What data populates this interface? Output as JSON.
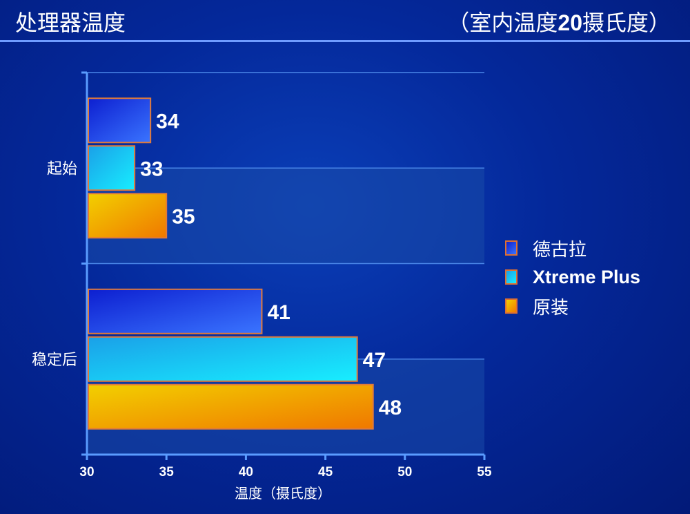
{
  "header": {
    "title": "处理器温度",
    "subtitle_prefix": "（室内温度",
    "subtitle_number": "20",
    "subtitle_suffix": "摄氏度）"
  },
  "chart_data": {
    "type": "bar",
    "orientation": "horizontal",
    "categories": [
      "起始",
      "稳定后"
    ],
    "series": [
      {
        "name": "德古拉",
        "values": [
          34,
          41
        ],
        "color": "#1a3cf0"
      },
      {
        "name": "Xtreme Plus",
        "values": [
          33,
          47
        ],
        "color": "#18b8f0"
      },
      {
        "name": "原装",
        "values": [
          35,
          48
        ],
        "color": "#f0a000"
      }
    ],
    "xlabel": "温度（摄氏度）",
    "ylabel": "",
    "xlim": [
      30,
      55
    ],
    "xticks": [
      "30",
      "35",
      "40",
      "45",
      "50",
      "55"
    ],
    "grid": true,
    "legend_position": "right",
    "data_labels": true
  }
}
